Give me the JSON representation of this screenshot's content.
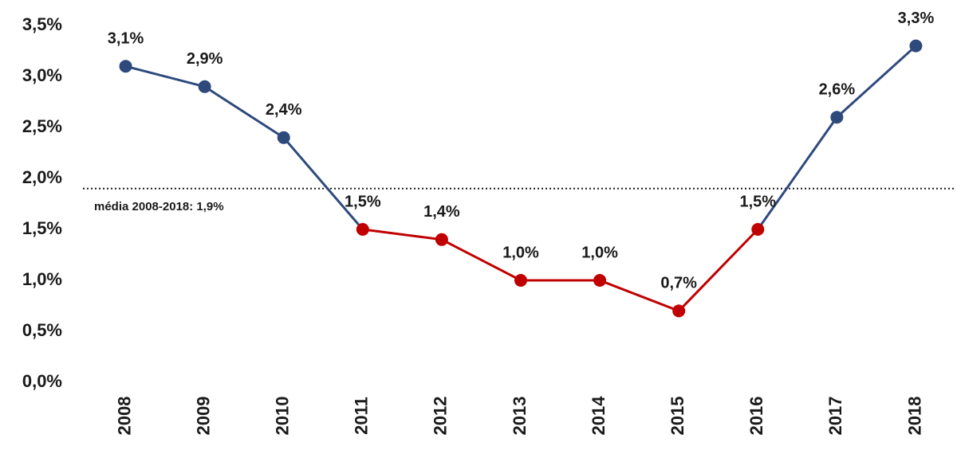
{
  "chart_data": {
    "type": "line",
    "categories": [
      "2008",
      "2009",
      "2010",
      "2011",
      "2012",
      "2013",
      "2014",
      "2015",
      "2016",
      "2017",
      "2018"
    ],
    "values": [
      3.1,
      2.9,
      2.4,
      1.5,
      1.4,
      1.0,
      1.0,
      0.7,
      1.5,
      2.6,
      3.3
    ],
    "value_labels": [
      "3,1%",
      "2,9%",
      "2,4%",
      "1,5%",
      "1,4%",
      "1,0%",
      "1,0%",
      "0,7%",
      "1,5%",
      "2,6%",
      "3,3%"
    ],
    "point_colors": [
      "#2e4a7d",
      "#2e4a7d",
      "#2e4a7d",
      "#c00000",
      "#c00000",
      "#c00000",
      "#c00000",
      "#c00000",
      "#c00000",
      "#2e4a7d",
      "#2e4a7d"
    ],
    "segment_colors": [
      "#2e4a7d",
      "#2e4a7d",
      "#2e4a7d",
      "#c00000",
      "#c00000",
      "#c00000",
      "#c00000",
      "#c00000",
      "#2e4a7d",
      "#2e4a7d"
    ],
    "mean": 1.9,
    "mean_label": "média 2008-2018: 1,9%",
    "ylim": [
      0,
      3.5
    ],
    "yticks": [
      {
        "value": 0,
        "label": "0,0%"
      },
      {
        "value": 0.5,
        "label": "0,5%"
      },
      {
        "value": 1.0,
        "label": "1,0%"
      },
      {
        "value": 1.5,
        "label": "1,5%"
      },
      {
        "value": 2.0,
        "label": "2,0%"
      },
      {
        "value": 2.5,
        "label": "2,5%"
      },
      {
        "value": 3.0,
        "label": "3,0%"
      },
      {
        "value": 3.5,
        "label": "3,5%"
      }
    ],
    "grid": false
  }
}
